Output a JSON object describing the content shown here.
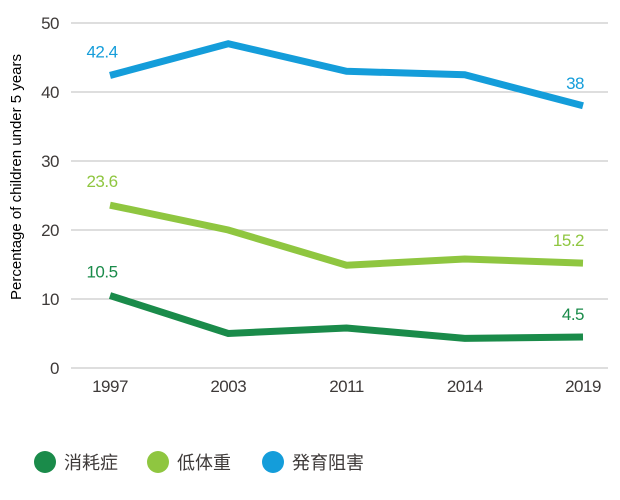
{
  "chart_data": {
    "type": "line",
    "title": "",
    "xlabel": "",
    "ylabel": "Percentage of children under 5 years",
    "categories": [
      "1997",
      "2003",
      "2011",
      "2014",
      "2019"
    ],
    "ylim": [
      0,
      50
    ],
    "yticks": [
      0,
      10,
      20,
      30,
      40,
      50
    ],
    "grid": true,
    "legend_position": "bottom",
    "series": [
      {
        "key": "wasting",
        "label": "消耗症",
        "color": "#1a8b4a",
        "values": [
          10.5,
          5.0,
          5.8,
          4.3,
          4.5
        ],
        "first_label": "10.5",
        "last_label": "4.5"
      },
      {
        "key": "underweight",
        "label": "低体重",
        "color": "#8fc640",
        "values": [
          23.6,
          20.0,
          14.9,
          15.8,
          15.2
        ],
        "first_label": "23.6",
        "last_label": "15.2"
      },
      {
        "key": "stunting",
        "label": "発育阻害",
        "color": "#149dda",
        "values": [
          42.4,
          47.0,
          43.0,
          42.5,
          38.0
        ],
        "first_label": "42.4",
        "last_label": "38"
      }
    ],
    "style": {
      "grid_color": "#c9c9c9",
      "text_color": "#3e3a39",
      "background": "#ffffff"
    }
  }
}
